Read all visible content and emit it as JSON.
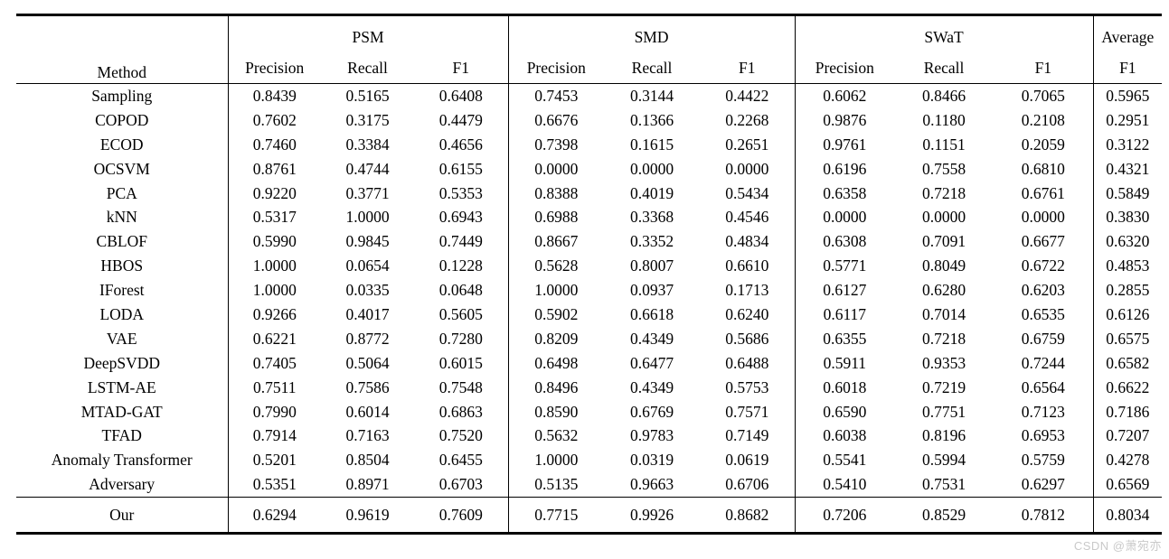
{
  "table": {
    "method_header": "Method",
    "group_headers": [
      "PSM",
      "SMD",
      "SWaT"
    ],
    "subheaders": [
      "Precision",
      "Recall",
      "F1"
    ],
    "average_label": "Average",
    "average_f1_label": "F1",
    "rows": [
      {
        "method": "Sampling",
        "values": [
          "0.8439",
          "0.5165",
          "0.6408",
          "0.7453",
          "0.3144",
          "0.4422",
          "0.6062",
          "0.8466",
          "0.7065",
          "0.5965"
        ]
      },
      {
        "method": "COPOD",
        "values": [
          "0.7602",
          "0.3175",
          "0.4479",
          "0.6676",
          "0.1366",
          "0.2268",
          "0.9876",
          "0.1180",
          "0.2108",
          "0.2951"
        ]
      },
      {
        "method": "ECOD",
        "values": [
          "0.7460",
          "0.3384",
          "0.4656",
          "0.7398",
          "0.1615",
          "0.2651",
          "0.9761",
          "0.1151",
          "0.2059",
          "0.3122"
        ]
      },
      {
        "method": "OCSVM",
        "values": [
          "0.8761",
          "0.4744",
          "0.6155",
          "0.0000",
          "0.0000",
          "0.0000",
          "0.6196",
          "0.7558",
          "0.6810",
          "0.4321"
        ]
      },
      {
        "method": "PCA",
        "values": [
          "0.9220",
          "0.3771",
          "0.5353",
          "0.8388",
          "0.4019",
          "0.5434",
          "0.6358",
          "0.7218",
          "0.6761",
          "0.5849"
        ]
      },
      {
        "method": "kNN",
        "values": [
          "0.5317",
          "1.0000",
          "0.6943",
          "0.6988",
          "0.3368",
          "0.4546",
          "0.0000",
          "0.0000",
          "0.0000",
          "0.3830"
        ]
      },
      {
        "method": "CBLOF",
        "values": [
          "0.5990",
          "0.9845",
          "0.7449",
          "0.8667",
          "0.3352",
          "0.4834",
          "0.6308",
          "0.7091",
          "0.6677",
          "0.6320"
        ]
      },
      {
        "method": "HBOS",
        "values": [
          "1.0000",
          "0.0654",
          "0.1228",
          "0.5628",
          "0.8007",
          "0.6610",
          "0.5771",
          "0.8049",
          "0.6722",
          "0.4853"
        ]
      },
      {
        "method": "IForest",
        "values": [
          "1.0000",
          "0.0335",
          "0.0648",
          "1.0000",
          "0.0937",
          "0.1713",
          "0.6127",
          "0.6280",
          "0.6203",
          "0.2855"
        ]
      },
      {
        "method": "LODA",
        "values": [
          "0.9266",
          "0.4017",
          "0.5605",
          "0.5902",
          "0.6618",
          "0.6240",
          "0.6117",
          "0.7014",
          "0.6535",
          "0.6126"
        ]
      },
      {
        "method": "VAE",
        "values": [
          "0.6221",
          "0.8772",
          "0.7280",
          "0.8209",
          "0.4349",
          "0.5686",
          "0.6355",
          "0.7218",
          "0.6759",
          "0.6575"
        ]
      },
      {
        "method": "DeepSVDD",
        "values": [
          "0.7405",
          "0.5064",
          "0.6015",
          "0.6498",
          "0.6477",
          "0.6488",
          "0.5911",
          "0.9353",
          "0.7244",
          "0.6582"
        ]
      },
      {
        "method": "LSTM-AE",
        "values": [
          "0.7511",
          "0.7586",
          "0.7548",
          "0.8496",
          "0.4349",
          "0.5753",
          "0.6018",
          "0.7219",
          "0.6564",
          "0.6622"
        ]
      },
      {
        "method": "MTAD-GAT",
        "values": [
          "0.7990",
          "0.6014",
          "0.6863",
          "0.8590",
          "0.6769",
          "0.7571",
          "0.6590",
          "0.7751",
          "0.7123",
          "0.7186"
        ]
      },
      {
        "method": "TFAD",
        "values": [
          "0.7914",
          "0.7163",
          "0.7520",
          "0.5632",
          "0.9783",
          "0.7149",
          "0.6038",
          "0.8196",
          "0.6953",
          "0.7207"
        ]
      },
      {
        "method": "Anomaly Transformer",
        "values": [
          "0.5201",
          "0.8504",
          "0.6455",
          "1.0000",
          "0.0319",
          "0.0619",
          "0.5541",
          "0.5994",
          "0.5759",
          "0.4278"
        ]
      },
      {
        "method": "Adversary",
        "values": [
          "0.5351",
          "0.8971",
          "0.6703",
          "0.5135",
          "0.9663",
          "0.6706",
          "0.5410",
          "0.7531",
          "0.6297",
          "0.6569"
        ]
      }
    ],
    "our_row": {
      "method": "Our",
      "values": [
        "0.6294",
        "0.9619",
        "0.7609",
        "0.7715",
        "0.9926",
        "0.8682",
        "0.7206",
        "0.8529",
        "0.7812",
        "0.8034"
      ],
      "bold_indices": [
        2,
        5,
        8,
        9
      ]
    }
  },
  "watermark": "CSDN @萧宛亦"
}
